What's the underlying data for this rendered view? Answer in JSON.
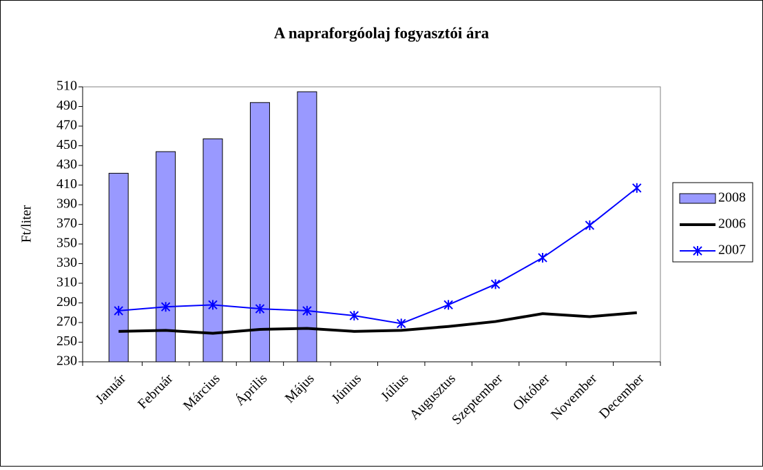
{
  "chart_data": {
    "type": "bar",
    "title": "A napraforgóolaj fogyasztói ára",
    "y_label": "Ft/liter",
    "categories": [
      "Január",
      "Február",
      "Március",
      "Április",
      "Május",
      "Június",
      "Július",
      "Augusztus",
      "Szeptember",
      "Október",
      "November",
      "December"
    ],
    "series": [
      {
        "name": "2008",
        "type": "bar",
        "color": "#9999ff",
        "values": [
          422,
          444,
          457,
          494,
          505,
          null,
          null,
          null,
          null,
          null,
          null,
          null
        ]
      },
      {
        "name": "2006",
        "type": "line",
        "color": "#000000",
        "values": [
          261,
          262,
          259,
          263,
          264,
          261,
          262,
          266,
          271,
          279,
          276,
          280
        ]
      },
      {
        "name": "2007",
        "type": "line",
        "color": "#0000ff",
        "marker": true,
        "values": [
          282,
          286,
          288,
          284,
          282,
          277,
          269,
          288,
          309,
          336,
          369,
          407
        ]
      }
    ],
    "ylim": [
      230,
      510
    ],
    "yticks": [
      230,
      250,
      270,
      290,
      310,
      330,
      350,
      370,
      390,
      410,
      430,
      450,
      470,
      490,
      510
    ],
    "legend": "right"
  }
}
